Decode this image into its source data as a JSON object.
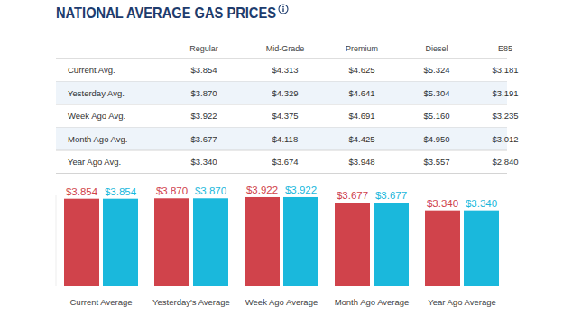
{
  "title": "NATIONAL AVERAGE GAS PRICES",
  "table": {
    "columns": [
      "Regular",
      "Mid-Grade",
      "Premium",
      "Diesel",
      "E85"
    ],
    "rows": [
      {
        "label": "Current Avg.",
        "cells": [
          "$3.854",
          "$4.313",
          "$4.625",
          "$5.324",
          "$3.181"
        ]
      },
      {
        "label": "Yesterday Avg.",
        "cells": [
          "$3.870",
          "$4.329",
          "$4.641",
          "$5.304",
          "$3.191"
        ]
      },
      {
        "label": "Week Ago Avg.",
        "cells": [
          "$3.922",
          "$4.375",
          "$4.691",
          "$5.160",
          "$3.235"
        ]
      },
      {
        "label": "Month Ago Avg.",
        "cells": [
          "$3.677",
          "$4.118",
          "$4.425",
          "$4.950",
          "$3.012"
        ]
      },
      {
        "label": "Year Ago Avg.",
        "cells": [
          "$3.340",
          "$3.674",
          "$3.948",
          "$3.557",
          "$2.840"
        ]
      }
    ]
  },
  "chart_data": {
    "type": "bar",
    "categories": [
      "Current Average",
      "Yesterday's Average",
      "Week Ago Average",
      "Month Ago Average",
      "Year Ago Average"
    ],
    "series": [
      {
        "color": "#d0434b",
        "values": [
          3.854,
          3.87,
          3.922,
          3.677,
          3.34
        ],
        "value_labels": [
          "$3.854",
          "$3.870",
          "$3.922",
          "$3.677",
          "$3.340"
        ]
      },
      {
        "color": "#1ab8dc",
        "values": [
          3.854,
          3.87,
          3.922,
          3.677,
          3.34
        ],
        "value_labels": [
          "$3.854",
          "$3.870",
          "$3.922",
          "$3.677",
          "$3.340"
        ]
      }
    ],
    "ylim": [
      0,
      4
    ],
    "grid": false,
    "tick_labels": "x",
    "data_labels": true
  }
}
